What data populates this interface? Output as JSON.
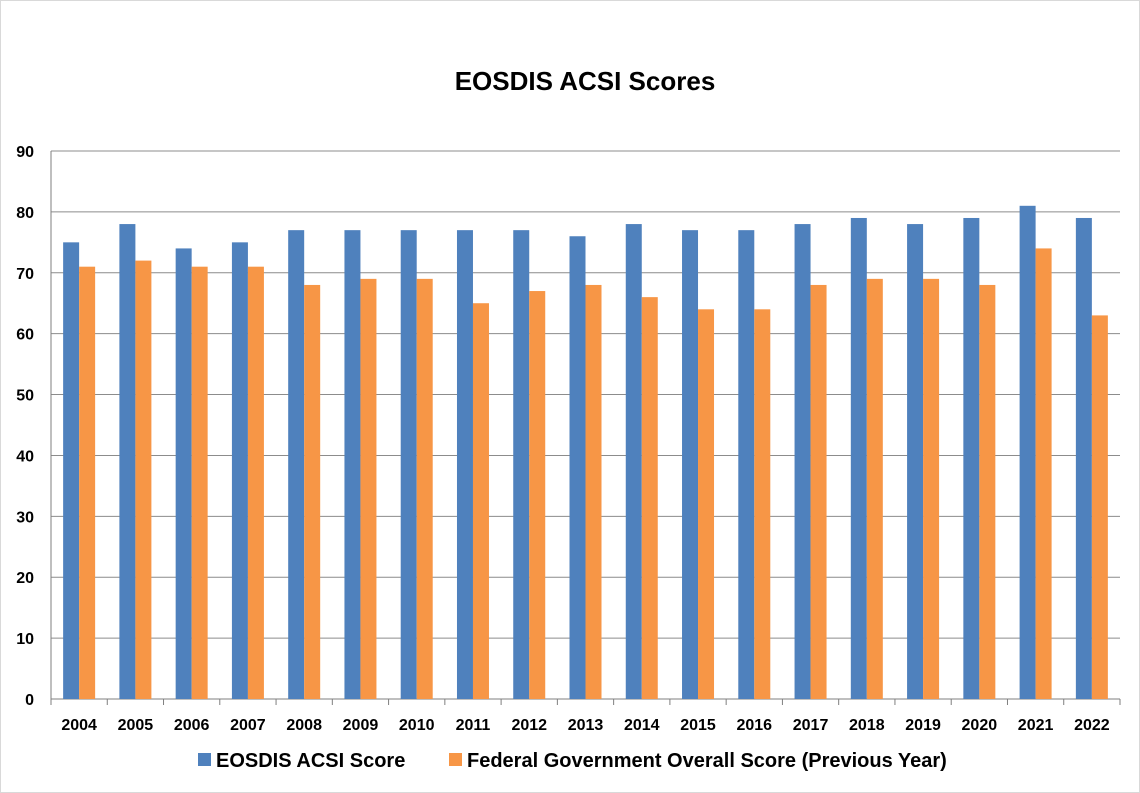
{
  "chart_data": {
    "type": "bar",
    "title": "EOSDIS ACSI Scores",
    "xlabel": "",
    "ylabel": "",
    "categories": [
      "2004",
      "2005",
      "2006",
      "2007",
      "2008",
      "2009",
      "2010",
      "2011",
      "2012",
      "2013",
      "2014",
      "2015",
      "2016",
      "2017",
      "2018",
      "2019",
      "2020",
      "2021",
      "2022"
    ],
    "series": [
      {
        "name": "EOSDIS ACSI Score",
        "color": "#4F81BD",
        "values": [
          75,
          78,
          74,
          75,
          77,
          77,
          77,
          77,
          77,
          76,
          78,
          77,
          77,
          78,
          79,
          78,
          79,
          81,
          79
        ]
      },
      {
        "name": "Federal Government Overall Score (Previous Year)",
        "color": "#F79646",
        "values": [
          71,
          72,
          71,
          71,
          68,
          69,
          69,
          65,
          67,
          68,
          66,
          64,
          64,
          68,
          69,
          69,
          68,
          74,
          63
        ]
      }
    ],
    "ylim": [
      0,
      90
    ],
    "yticks": [
      0,
      10,
      20,
      30,
      40,
      50,
      60,
      70,
      80,
      90
    ],
    "grid": true,
    "legend_position": "bottom"
  }
}
